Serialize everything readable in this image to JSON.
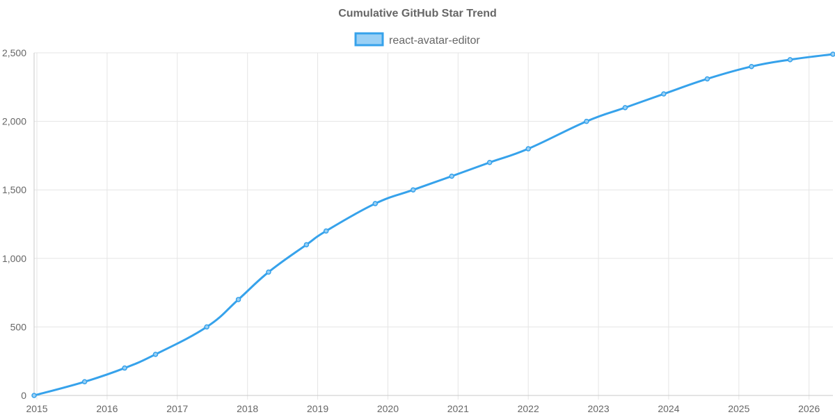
{
  "chart_data": {
    "type": "line",
    "title": "Cumulative GitHub Star Trend",
    "xlabel": "",
    "ylabel": "",
    "grid": true,
    "legend_position": "top-center",
    "x_ticks": [
      "2015",
      "2016",
      "2017",
      "2018",
      "2019",
      "2020",
      "2021",
      "2022",
      "2023",
      "2024",
      "2025",
      "2026"
    ],
    "y_ticks": [
      0,
      500,
      1000,
      1500,
      2000,
      2500
    ],
    "y_tick_labels": [
      "0",
      "500",
      "1,000",
      "1,500",
      "2,000",
      "2,500"
    ],
    "xlim": [
      2014.96,
      2026.34
    ],
    "ylim": [
      0,
      2500
    ],
    "series": [
      {
        "name": "react-avatar-editor",
        "color": "#36a2eb",
        "fill_color": "#9ad0f5",
        "x": [
          2014.96,
          2015.68,
          2016.25,
          2016.69,
          2017.42,
          2017.87,
          2018.3,
          2018.84,
          2019.12,
          2019.82,
          2020.36,
          2020.91,
          2021.45,
          2022.0,
          2022.83,
          2023.38,
          2023.93,
          2024.55,
          2025.18,
          2025.73,
          2026.34
        ],
        "values": [
          0,
          100,
          200,
          300,
          500,
          700,
          900,
          1100,
          1200,
          1400,
          1500,
          1600,
          1700,
          1800,
          2000,
          2100,
          2200,
          2310,
          2400,
          2450,
          2490
        ]
      }
    ]
  }
}
